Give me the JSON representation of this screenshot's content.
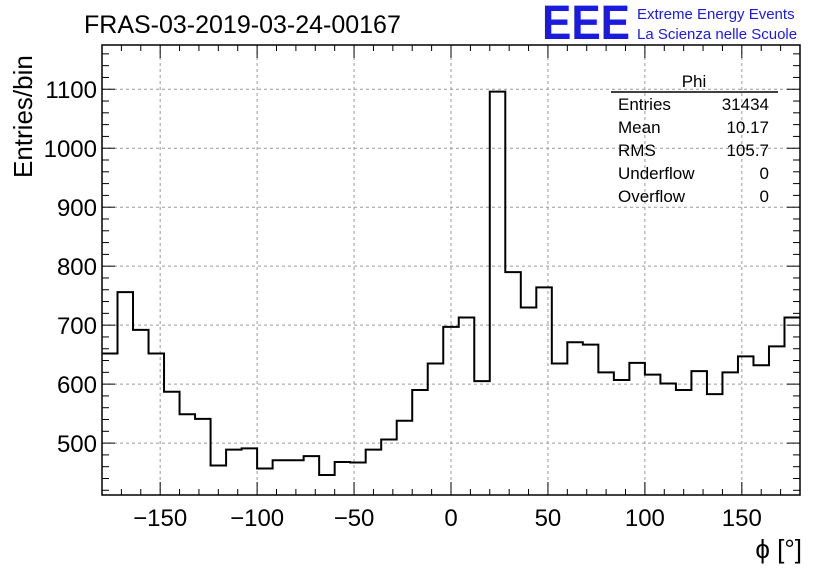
{
  "header": {
    "title": "FRAS-03-2019-03-24-00167",
    "logo_text": "EEE",
    "logo_line1": "Extreme Energy Events",
    "logo_line2": "La Scienza nelle Scuole",
    "logo_color": "#1b1be0"
  },
  "stats": {
    "name": "Phi",
    "rows": [
      {
        "label": "Entries",
        "value": "31434"
      },
      {
        "label": "Mean",
        "value": "10.17"
      },
      {
        "label": "RMS",
        "value": "105.7"
      },
      {
        "label": "Underflow",
        "value": "0"
      },
      {
        "label": "Overflow",
        "value": "0"
      }
    ]
  },
  "chart_data": {
    "type": "histogram",
    "title": "FRAS-03-2019-03-24-00167",
    "xlabel": "ϕ [°]",
    "ylabel": "Entries/bin",
    "xlim": [
      -180,
      180
    ],
    "ylim": [
      412,
      1175
    ],
    "grid": true,
    "bin_width": 8,
    "x_ticks": [
      -150,
      -100,
      -50,
      0,
      50,
      100,
      150
    ],
    "x_tick_labels": [
      "−150",
      "−100",
      "−50",
      "0",
      "50",
      "100",
      "150"
    ],
    "y_ticks": [
      500,
      600,
      700,
      800,
      900,
      1000,
      1100
    ],
    "y_tick_labels": [
      "500",
      "600",
      "700",
      "800",
      "900",
      "1000",
      "1100"
    ],
    "series": [
      {
        "bin_lows": [
          -180,
          -172,
          -164,
          -156,
          -148,
          -140,
          -132,
          -124,
          -116,
          -108,
          -100,
          -92,
          -84,
          -76,
          -68,
          -60,
          -52,
          -44,
          -36,
          -28,
          -20,
          -12,
          -4,
          4,
          12,
          20,
          28,
          36,
          44,
          52,
          60,
          68,
          76,
          84,
          92,
          100,
          108,
          116,
          124,
          132,
          140,
          148,
          156,
          164,
          172
        ],
        "values": [
          652,
          756,
          692,
          652,
          587,
          549,
          541,
          462,
          489,
          491,
          457,
          471,
          471,
          478,
          446,
          468,
          467,
          489,
          506,
          538,
          590,
          635,
          697,
          713,
          605,
          1096,
          790,
          730,
          764,
          635,
          671,
          667,
          620,
          607,
          636,
          616,
          601,
          590,
          622,
          583,
          620,
          647,
          632,
          664,
          713
        ]
      }
    ]
  }
}
